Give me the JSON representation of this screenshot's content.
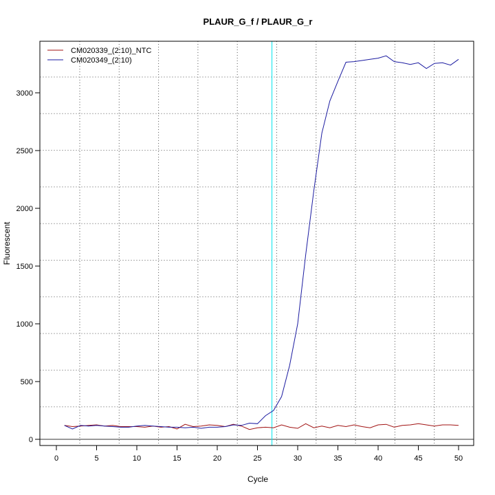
{
  "chart_data": {
    "type": "line",
    "title": "PLAUR_G_f / PLAUR_G_r",
    "xlabel": "Cycle",
    "ylabel": "Fluorescent",
    "xlim": [
      -1.5,
      52
    ],
    "ylim": [
      -50,
      3450
    ],
    "xticks": [
      0,
      5,
      10,
      15,
      20,
      25,
      30,
      35,
      40,
      45,
      50
    ],
    "yticks": [
      0,
      500,
      1000,
      1500,
      2000,
      2500,
      3000
    ],
    "grid": true,
    "legend_position": "top-left",
    "vertical_marker_cycle": 26.8,
    "marker_color": "#00e5ee",
    "x": [
      1,
      2,
      3,
      4,
      5,
      6,
      7,
      8,
      9,
      10,
      11,
      12,
      13,
      14,
      15,
      16,
      17,
      18,
      19,
      20,
      21,
      22,
      23,
      24,
      25,
      26,
      27,
      28,
      29,
      30,
      31,
      32,
      33,
      34,
      35,
      36,
      37,
      38,
      39,
      40,
      41,
      42,
      43,
      44,
      45,
      46,
      47,
      48,
      49,
      50
    ],
    "series": [
      {
        "name": "CM020339_(2:10)_NTC",
        "color": "#a01010",
        "values": [
          120,
          110,
          115,
          120,
          125,
          115,
          120,
          110,
          110,
          110,
          105,
          115,
          105,
          110,
          90,
          130,
          110,
          115,
          125,
          120,
          110,
          130,
          115,
          85,
          100,
          105,
          100,
          125,
          105,
          95,
          135,
          100,
          115,
          100,
          120,
          110,
          125,
          110,
          100,
          125,
          130,
          105,
          120,
          125,
          135,
          125,
          115,
          125,
          125,
          120
        ]
      },
      {
        "name": "CM020349_(2:10)",
        "color": "#1a1aa0",
        "values": [
          120,
          90,
          120,
          115,
          120,
          115,
          110,
          105,
          105,
          115,
          120,
          115,
          110,
          105,
          105,
          100,
          105,
          95,
          105,
          105,
          110,
          125,
          120,
          140,
          135,
          205,
          250,
          370,
          640,
          1000,
          1600,
          2150,
          2650,
          2930,
          3100,
          3265,
          3270,
          3280,
          3290,
          3300,
          3320,
          3270,
          3260,
          3245,
          3260,
          3210,
          3255,
          3260,
          3240,
          3290
        ]
      }
    ]
  }
}
